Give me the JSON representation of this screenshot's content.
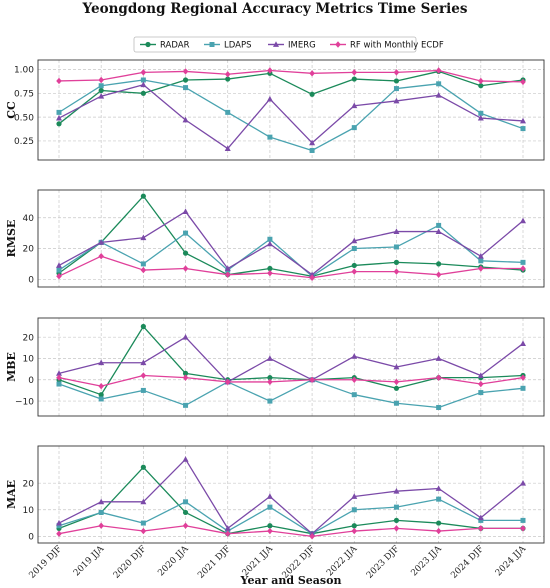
{
  "chart_data": {
    "type": "line",
    "title": "Yeongdong Regional Accuracy Metrics Time Series",
    "xlabel": "Year and Season",
    "categories": [
      "2019 DJF",
      "2019 JJA",
      "2020 DJF",
      "2020 JJA",
      "2021 DJF",
      "2021 JJA",
      "2022 DJF",
      "2022 JJA",
      "2023 DJF",
      "2023 JJA",
      "2024 DJF",
      "2024 JJA"
    ],
    "legend": {
      "placement": "top-center",
      "entries": [
        {
          "name": "RADAR",
          "color": "#1b8a5a",
          "marker": "circle"
        },
        {
          "name": "LDAPS",
          "color": "#4aa3b0",
          "marker": "square"
        },
        {
          "name": "IMERG",
          "color": "#7b4aa8",
          "marker": "triangle"
        },
        {
          "name": "RF with Monthly ECDF",
          "color": "#e0409a",
          "marker": "diamond"
        }
      ]
    },
    "grid": true,
    "panels": [
      {
        "ylabel": "CC",
        "ylim": [
          0.05,
          1.1
        ],
        "yticks": [
          0.25,
          0.5,
          0.75,
          1.0
        ],
        "ytick_labels": [
          "0.25",
          "0.50",
          "0.75",
          "1.00"
        ],
        "series": [
          {
            "name": "RADAR",
            "values": [
              0.43,
              0.78,
              0.75,
              0.89,
              0.9,
              0.96,
              0.74,
              0.9,
              0.88,
              0.98,
              0.83,
              0.89
            ]
          },
          {
            "name": "LDAPS",
            "values": [
              0.55,
              0.83,
              0.89,
              0.81,
              0.55,
              0.29,
              0.15,
              0.39,
              0.8,
              0.85,
              0.54,
              0.38
            ]
          },
          {
            "name": "IMERG",
            "values": [
              0.49,
              0.72,
              0.84,
              0.47,
              0.17,
              0.69,
              0.23,
              0.62,
              0.67,
              0.73,
              0.49,
              0.46
            ]
          },
          {
            "name": "RF with Monthly ECDF",
            "values": [
              0.88,
              0.89,
              0.97,
              0.98,
              0.95,
              0.99,
              0.96,
              0.97,
              0.97,
              0.99,
              0.88,
              0.87
            ]
          }
        ]
      },
      {
        "ylabel": "RMSE",
        "ylim": [
          -5,
          58
        ],
        "yticks": [
          0,
          20,
          40
        ],
        "ytick_labels": [
          "0",
          "20",
          "40"
        ],
        "series": [
          {
            "name": "RADAR",
            "values": [
              4,
              24,
              54,
              17,
              3,
              7,
              2,
              9,
              11,
              10,
              8,
              6
            ]
          },
          {
            "name": "LDAPS",
            "values": [
              6,
              24,
              10,
              30,
              6,
              26,
              2,
              20,
              21,
              35,
              12,
              11
            ]
          },
          {
            "name": "IMERG",
            "values": [
              9,
              24,
              27,
              44,
              7,
              23,
              3,
              25,
              31,
              31,
              15,
              38
            ]
          },
          {
            "name": "RF with Monthly ECDF",
            "values": [
              2,
              15,
              6,
              7,
              3,
              4,
              1,
              5,
              5,
              3,
              7,
              7
            ]
          }
        ]
      },
      {
        "ylabel": "MBE",
        "ylim": [
          -17,
          29
        ],
        "yticks": [
          -10,
          0,
          10,
          20
        ],
        "ytick_labels": [
          "−10",
          "0",
          "10",
          "20"
        ],
        "series": [
          {
            "name": "RADAR",
            "values": [
              0,
              -7,
              25,
              3,
              0,
              1,
              0,
              1,
              -4,
              1,
              1,
              2
            ]
          },
          {
            "name": "LDAPS",
            "values": [
              -2,
              -9,
              -5,
              -12,
              -1,
              -10,
              0,
              -7,
              -11,
              -13,
              -6,
              -4
            ]
          },
          {
            "name": "IMERG",
            "values": [
              3,
              8,
              8,
              20,
              -1,
              10,
              0,
              11,
              6,
              10,
              2,
              17
            ]
          },
          {
            "name": "RF with Monthly ECDF",
            "values": [
              1,
              -3,
              2,
              1,
              -1,
              -1,
              0,
              0,
              -1,
              1,
              -2,
              1
            ]
          }
        ]
      },
      {
        "ylabel": "MAE",
        "ylim": [
          -2.5,
          34
        ],
        "yticks": [
          0,
          10,
          20
        ],
        "ytick_labels": [
          "0",
          "10",
          "20"
        ],
        "series": [
          {
            "name": "RADAR",
            "values": [
              3,
              9,
              26,
              9,
              1,
              4,
              1,
              4,
              6,
              5,
              3,
              3
            ]
          },
          {
            "name": "LDAPS",
            "values": [
              4,
              9,
              5,
              13,
              2,
              11,
              1,
              10,
              11,
              14,
              6,
              6
            ]
          },
          {
            "name": "IMERG",
            "values": [
              5,
              13,
              13,
              29,
              3,
              15,
              1,
              15,
              17,
              18,
              7,
              20
            ]
          },
          {
            "name": "RF with Monthly ECDF",
            "values": [
              1,
              4,
              2,
              4,
              1,
              2,
              0,
              2,
              3,
              2,
              3,
              3
            ]
          }
        ]
      }
    ]
  }
}
